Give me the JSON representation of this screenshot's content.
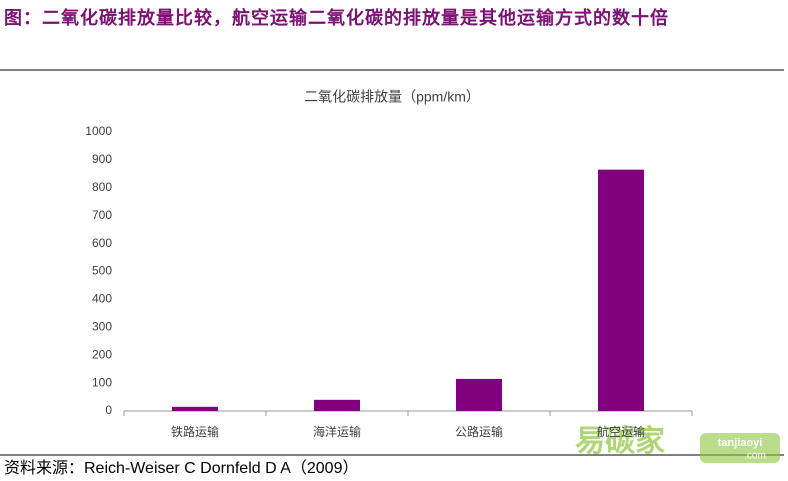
{
  "header": {
    "title": "图：二氧化碳排放量比较，航空运输二氧化碳的排放量是其他运输方式的数十倍"
  },
  "chart_data": {
    "type": "bar",
    "title": "二氧化碳排放量（ppm/km）",
    "categories": [
      "铁路运输",
      "海洋运输",
      "公路运输",
      "航空运输"
    ],
    "values": [
      15,
      40,
      115,
      865
    ],
    "color": "#800080",
    "ylim": [
      0,
      1000
    ],
    "yticks": [
      0,
      100,
      200,
      300,
      400,
      500,
      600,
      700,
      800,
      900,
      1000
    ],
    "grid": false
  },
  "source": "资料来源：Reich-Weiser C Dornfeld D A（2009）",
  "watermark": {
    "name": "易碳家",
    "site": "tanjiaoyi",
    "domain": ".com"
  }
}
